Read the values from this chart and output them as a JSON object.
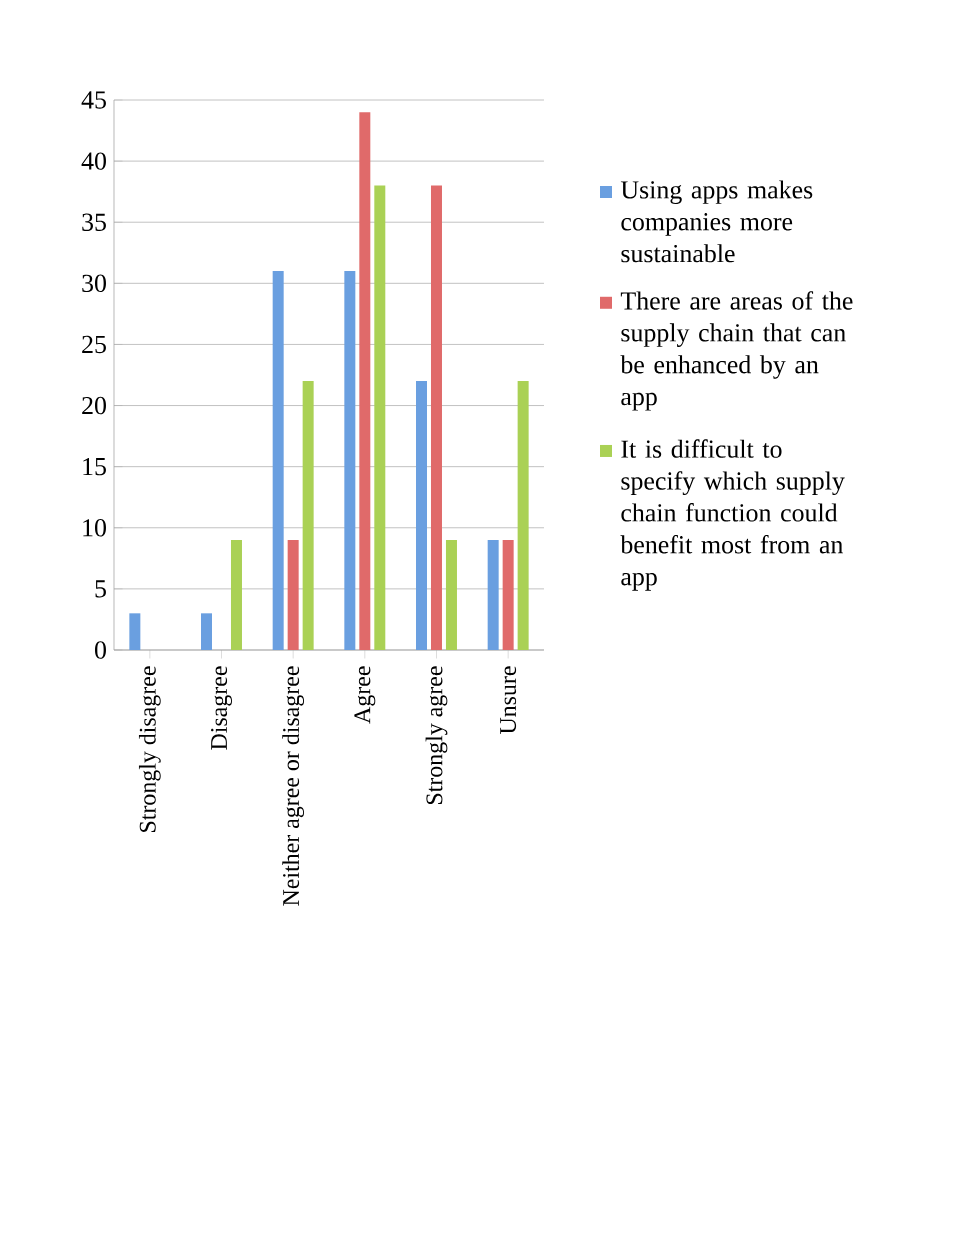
{
  "chart_data": {
    "type": "bar",
    "categories": [
      "Strongly disagree",
      "Disagree",
      "Neither agree or disagree",
      "Agree",
      "Strongly agree",
      "Unsure"
    ],
    "series": [
      {
        "name": "Using apps makes companies more sustainable",
        "color": "#6a9fe0",
        "values": [
          3,
          3,
          31,
          31,
          22,
          9
        ]
      },
      {
        "name": "There are areas of the supply chain that can be enhanced by an app",
        "color": "#e06a6a",
        "values": [
          0,
          0,
          9,
          44,
          38,
          9
        ]
      },
      {
        "name": "It is difficult to specify which supply chain function could benefit most from an app",
        "color": "#aad155",
        "values": [
          0,
          9,
          22,
          38,
          9,
          22
        ]
      }
    ],
    "ylim": [
      0,
      45
    ],
    "yticks": [
      0,
      5,
      10,
      15,
      20,
      25,
      30,
      35,
      40,
      45
    ],
    "grid": "y",
    "legend": "right"
  }
}
